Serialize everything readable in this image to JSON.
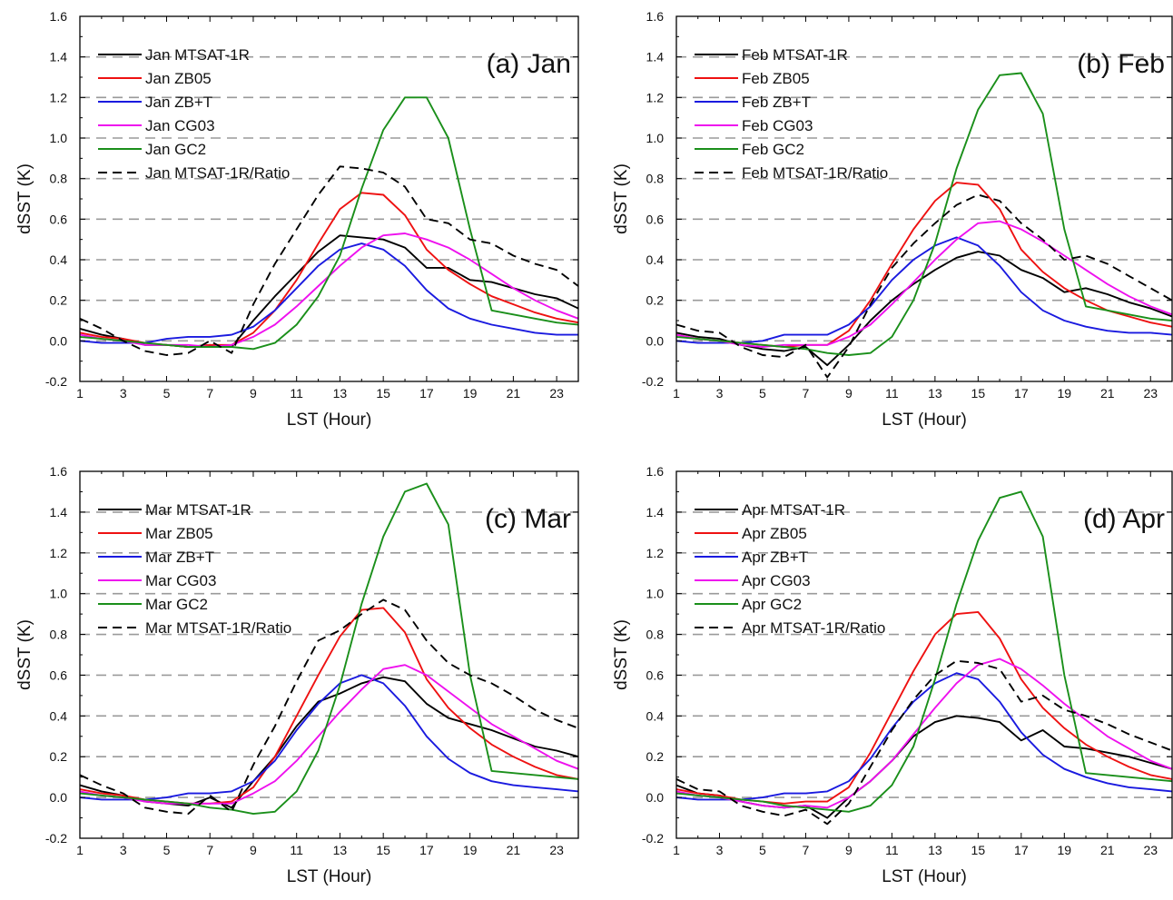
{
  "chart_data": [
    {
      "type": "line",
      "title": "(a) Jan",
      "xlabel": "LST (Hour)",
      "ylabel": "dSST (K)",
      "xlim": [
        1,
        24
      ],
      "ylim": [
        -0.2,
        1.6
      ],
      "xticks": [
        "1",
        "3",
        "5",
        "7",
        "9",
        "11",
        "13",
        "15",
        "17",
        "19",
        "21",
        "23"
      ],
      "yticks": [
        "-0.2",
        "0.0",
        "0.2",
        "0.4",
        "0.6",
        "0.8",
        "1.0",
        "1.2",
        "1.4",
        "1.6"
      ],
      "grid": "horizontal dashed",
      "legend_position": "top-left",
      "x": [
        1,
        2,
        3,
        4,
        5,
        6,
        7,
        8,
        9,
        10,
        11,
        12,
        13,
        14,
        15,
        16,
        17,
        18,
        19,
        20,
        21,
        22,
        23,
        24
      ],
      "series": [
        {
          "name": "Jan MTSAT-1R",
          "color": "#000000",
          "dash": "solid",
          "values": [
            0.06,
            0.03,
            0.01,
            -0.02,
            -0.02,
            -0.03,
            -0.02,
            -0.03,
            0.1,
            0.22,
            0.33,
            0.44,
            0.52,
            0.51,
            0.5,
            0.46,
            0.36,
            0.36,
            0.3,
            0.29,
            0.26,
            0.23,
            0.21,
            0.16
          ]
        },
        {
          "name": "Jan ZB05",
          "color": "#ee1111",
          "dash": "solid",
          "values": [
            0.04,
            0.02,
            0.01,
            -0.01,
            -0.02,
            -0.03,
            -0.02,
            -0.02,
            0.04,
            0.15,
            0.3,
            0.48,
            0.65,
            0.73,
            0.72,
            0.62,
            0.45,
            0.35,
            0.28,
            0.22,
            0.18,
            0.14,
            0.11,
            0.09
          ]
        },
        {
          "name": "Jan ZB+T",
          "color": "#1a1adf",
          "dash": "solid",
          "values": [
            0.0,
            -0.01,
            -0.01,
            -0.01,
            0.01,
            0.02,
            0.02,
            0.03,
            0.07,
            0.15,
            0.26,
            0.37,
            0.45,
            0.48,
            0.45,
            0.37,
            0.25,
            0.16,
            0.11,
            0.08,
            0.06,
            0.04,
            0.03,
            0.03
          ]
        },
        {
          "name": "Jan CG03",
          "color": "#ee11ee",
          "dash": "solid",
          "values": [
            0.03,
            0.01,
            0.0,
            -0.02,
            -0.02,
            -0.02,
            -0.03,
            -0.02,
            0.02,
            0.08,
            0.17,
            0.27,
            0.37,
            0.46,
            0.52,
            0.53,
            0.5,
            0.46,
            0.4,
            0.33,
            0.26,
            0.2,
            0.15,
            0.11
          ]
        },
        {
          "name": "Jan  GC2",
          "color": "#1a8f1a",
          "dash": "solid",
          "values": [
            0.02,
            0.01,
            0.0,
            -0.01,
            -0.02,
            -0.03,
            -0.03,
            -0.03,
            -0.04,
            -0.01,
            0.08,
            0.22,
            0.42,
            0.75,
            1.04,
            1.2,
            1.2,
            1.0,
            0.55,
            0.15,
            0.13,
            0.11,
            0.09,
            0.08
          ]
        },
        {
          "name": "Jan MTSAT-1R/Ratio",
          "color": "#000000",
          "dash": "dashed",
          "values": [
            0.11,
            0.06,
            0.0,
            -0.05,
            -0.07,
            -0.06,
            0.0,
            -0.06,
            0.18,
            0.38,
            0.55,
            0.72,
            0.86,
            0.85,
            0.83,
            0.76,
            0.6,
            0.58,
            0.5,
            0.48,
            0.42,
            0.38,
            0.35,
            0.27
          ]
        }
      ]
    },
    {
      "type": "line",
      "title": "(b) Feb",
      "xlabel": "LST (Hour)",
      "ylabel": "dSST (K)",
      "xlim": [
        1,
        24
      ],
      "ylim": [
        -0.2,
        1.6
      ],
      "xticks": [
        "1",
        "3",
        "5",
        "7",
        "9",
        "11",
        "13",
        "15",
        "17",
        "19",
        "21",
        "23"
      ],
      "yticks": [
        "-0.2",
        "0.0",
        "0.2",
        "0.4",
        "0.6",
        "0.8",
        "1.0",
        "1.2",
        "1.4",
        "1.6"
      ],
      "grid": "horizontal dashed",
      "legend_position": "top-left",
      "x": [
        1,
        2,
        3,
        4,
        5,
        6,
        7,
        8,
        9,
        10,
        11,
        12,
        13,
        14,
        15,
        16,
        17,
        18,
        19,
        20,
        21,
        22,
        23,
        24
      ],
      "series": [
        {
          "name": "Feb MTSAT-1R",
          "color": "#000000",
          "dash": "solid",
          "values": [
            0.04,
            0.02,
            0.01,
            -0.02,
            -0.04,
            -0.05,
            -0.03,
            -0.12,
            -0.02,
            0.1,
            0.2,
            0.28,
            0.35,
            0.41,
            0.44,
            0.42,
            0.35,
            0.31,
            0.24,
            0.26,
            0.23,
            0.19,
            0.16,
            0.12
          ]
        },
        {
          "name": "Feb ZB05",
          "color": "#ee1111",
          "dash": "solid",
          "values": [
            0.03,
            0.01,
            0.0,
            -0.01,
            -0.02,
            -0.03,
            -0.02,
            -0.02,
            0.05,
            0.2,
            0.38,
            0.55,
            0.69,
            0.78,
            0.77,
            0.65,
            0.45,
            0.34,
            0.26,
            0.2,
            0.15,
            0.12,
            0.09,
            0.07
          ]
        },
        {
          "name": "Feb ZB+T",
          "color": "#1a1adf",
          "dash": "solid",
          "values": [
            0.0,
            -0.01,
            -0.01,
            -0.01,
            0.0,
            0.03,
            0.03,
            0.03,
            0.08,
            0.17,
            0.3,
            0.4,
            0.47,
            0.51,
            0.47,
            0.37,
            0.24,
            0.15,
            0.1,
            0.07,
            0.05,
            0.04,
            0.04,
            0.03
          ]
        },
        {
          "name": "Feb CG03",
          "color": "#ee11ee",
          "dash": "solid",
          "values": [
            0.03,
            0.01,
            0.0,
            -0.02,
            -0.03,
            -0.02,
            -0.02,
            -0.02,
            0.02,
            0.08,
            0.18,
            0.29,
            0.4,
            0.5,
            0.58,
            0.59,
            0.55,
            0.49,
            0.42,
            0.35,
            0.28,
            0.22,
            0.17,
            0.13
          ]
        },
        {
          "name": "Feb  GC2",
          "color": "#1a8f1a",
          "dash": "solid",
          "values": [
            0.02,
            0.01,
            0.0,
            -0.01,
            -0.02,
            -0.03,
            -0.04,
            -0.06,
            -0.07,
            -0.06,
            0.02,
            0.2,
            0.48,
            0.85,
            1.14,
            1.31,
            1.32,
            1.12,
            0.55,
            0.17,
            0.15,
            0.13,
            0.11,
            0.1
          ]
        },
        {
          "name": "Feb MTSAT-1R/Ratio",
          "color": "#000000",
          "dash": "dashed",
          "values": [
            0.08,
            0.05,
            0.04,
            -0.03,
            -0.07,
            -0.08,
            -0.02,
            -0.18,
            -0.03,
            0.18,
            0.36,
            0.48,
            0.58,
            0.67,
            0.72,
            0.69,
            0.58,
            0.5,
            0.4,
            0.42,
            0.38,
            0.32,
            0.26,
            0.2
          ]
        }
      ]
    },
    {
      "type": "line",
      "title": "(c) Mar",
      "xlabel": "LST (Hour)",
      "ylabel": "dSST (K)",
      "xlim": [
        1,
        24
      ],
      "ylim": [
        -0.2,
        1.6
      ],
      "xticks": [
        "1",
        "3",
        "5",
        "7",
        "9",
        "11",
        "13",
        "15",
        "17",
        "19",
        "21",
        "23"
      ],
      "yticks": [
        "-0.2",
        "0.0",
        "0.2",
        "0.4",
        "0.6",
        "0.8",
        "1.0",
        "1.2",
        "1.4",
        "1.6"
      ],
      "grid": "horizontal dashed",
      "legend_position": "top-left",
      "x": [
        1,
        2,
        3,
        4,
        5,
        6,
        7,
        8,
        9,
        10,
        11,
        12,
        13,
        14,
        15,
        16,
        17,
        18,
        19,
        20,
        21,
        22,
        23,
        24
      ],
      "series": [
        {
          "name": "Mar MTSAT-1R",
          "color": "#000000",
          "dash": "solid",
          "values": [
            0.06,
            0.03,
            0.01,
            -0.02,
            -0.03,
            -0.04,
            0.0,
            -0.05,
            0.08,
            0.2,
            0.35,
            0.47,
            0.51,
            0.56,
            0.59,
            0.57,
            0.46,
            0.39,
            0.36,
            0.33,
            0.29,
            0.25,
            0.23,
            0.2
          ]
        },
        {
          "name": "Mar ZB05",
          "color": "#ee1111",
          "dash": "solid",
          "values": [
            0.04,
            0.02,
            0.01,
            -0.01,
            -0.02,
            -0.03,
            -0.03,
            -0.02,
            0.05,
            0.2,
            0.4,
            0.6,
            0.79,
            0.92,
            0.93,
            0.81,
            0.58,
            0.44,
            0.34,
            0.26,
            0.2,
            0.15,
            0.11,
            0.09
          ]
        },
        {
          "name": "Mar ZB+T",
          "color": "#1a1adf",
          "dash": "solid",
          "values": [
            0.0,
            -0.01,
            -0.01,
            -0.01,
            0.0,
            0.02,
            0.02,
            0.03,
            0.08,
            0.18,
            0.33,
            0.46,
            0.56,
            0.6,
            0.56,
            0.45,
            0.3,
            0.19,
            0.12,
            0.08,
            0.06,
            0.05,
            0.04,
            0.03
          ]
        },
        {
          "name": "Mar CG03",
          "color": "#ee11ee",
          "dash": "solid",
          "values": [
            0.03,
            0.01,
            0.0,
            -0.02,
            -0.03,
            -0.03,
            -0.03,
            -0.03,
            0.02,
            0.08,
            0.18,
            0.3,
            0.42,
            0.53,
            0.63,
            0.65,
            0.6,
            0.52,
            0.44,
            0.36,
            0.3,
            0.24,
            0.18,
            0.14
          ]
        },
        {
          "name": "Mar  GC2",
          "color": "#1a8f1a",
          "dash": "solid",
          "values": [
            0.02,
            0.01,
            0.0,
            -0.01,
            -0.02,
            -0.03,
            -0.05,
            -0.06,
            -0.08,
            -0.07,
            0.03,
            0.23,
            0.55,
            0.95,
            1.28,
            1.5,
            1.54,
            1.34,
            0.6,
            0.13,
            0.12,
            0.11,
            0.1,
            0.09
          ]
        },
        {
          "name": "Mar MTSAT-1R/Ratio",
          "color": "#000000",
          "dash": "dashed",
          "values": [
            0.11,
            0.06,
            0.02,
            -0.05,
            -0.07,
            -0.08,
            0.01,
            -0.07,
            0.16,
            0.35,
            0.57,
            0.77,
            0.82,
            0.9,
            0.97,
            0.92,
            0.77,
            0.66,
            0.6,
            0.56,
            0.5,
            0.43,
            0.38,
            0.34
          ]
        }
      ]
    },
    {
      "type": "line",
      "title": "(d) Apr",
      "xlabel": "LST (Hour)",
      "ylabel": "dSST (K)",
      "xlim": [
        1,
        24
      ],
      "ylim": [
        -0.2,
        1.6
      ],
      "xticks": [
        "1",
        "3",
        "5",
        "7",
        "9",
        "11",
        "13",
        "15",
        "17",
        "19",
        "21",
        "23"
      ],
      "yticks": [
        "-0.2",
        "0.0",
        "0.2",
        "0.4",
        "0.6",
        "0.8",
        "1.0",
        "1.2",
        "1.4",
        "1.6"
      ],
      "grid": "horizontal dashed",
      "legend_position": "top-left",
      "x": [
        1,
        2,
        3,
        4,
        5,
        6,
        7,
        8,
        9,
        10,
        11,
        12,
        13,
        14,
        15,
        16,
        17,
        18,
        19,
        20,
        21,
        22,
        23,
        24
      ],
      "series": [
        {
          "name": "Apr MTSAT-1R",
          "color": "#000000",
          "dash": "solid",
          "values": [
            0.06,
            0.02,
            0.01,
            -0.02,
            -0.04,
            -0.05,
            -0.04,
            -0.1,
            0.0,
            0.08,
            0.18,
            0.3,
            0.37,
            0.4,
            0.39,
            0.37,
            0.28,
            0.33,
            0.25,
            0.24,
            0.22,
            0.2,
            0.17,
            0.14
          ]
        },
        {
          "name": "Apr ZB05",
          "color": "#ee1111",
          "dash": "solid",
          "values": [
            0.04,
            0.02,
            0.01,
            -0.01,
            -0.02,
            -0.03,
            -0.02,
            -0.02,
            0.05,
            0.22,
            0.42,
            0.62,
            0.8,
            0.9,
            0.91,
            0.78,
            0.58,
            0.44,
            0.34,
            0.26,
            0.2,
            0.15,
            0.11,
            0.09
          ]
        },
        {
          "name": "Apr ZB+T",
          "color": "#1a1adf",
          "dash": "solid",
          "values": [
            0.0,
            -0.01,
            -0.01,
            -0.01,
            0.0,
            0.02,
            0.02,
            0.03,
            0.08,
            0.19,
            0.34,
            0.47,
            0.56,
            0.61,
            0.58,
            0.47,
            0.32,
            0.21,
            0.14,
            0.1,
            0.07,
            0.05,
            0.04,
            0.03
          ]
        },
        {
          "name": "Apr CG03",
          "color": "#ee11ee",
          "dash": "solid",
          "values": [
            0.03,
            0.01,
            0.0,
            -0.02,
            -0.04,
            -0.05,
            -0.04,
            -0.05,
            0.0,
            0.08,
            0.18,
            0.31,
            0.44,
            0.56,
            0.65,
            0.68,
            0.63,
            0.55,
            0.46,
            0.38,
            0.3,
            0.24,
            0.18,
            0.14
          ]
        },
        {
          "name": "Apr  GC2",
          "color": "#1a8f1a",
          "dash": "solid",
          "values": [
            0.02,
            0.01,
            0.0,
            -0.01,
            -0.02,
            -0.04,
            -0.05,
            -0.06,
            -0.07,
            -0.04,
            0.06,
            0.25,
            0.58,
            0.95,
            1.26,
            1.47,
            1.5,
            1.28,
            0.6,
            0.12,
            0.11,
            0.1,
            0.09,
            0.08
          ]
        },
        {
          "name": "Apr MTSAT-1R/Ratio",
          "color": "#000000",
          "dash": "dashed",
          "values": [
            0.09,
            0.04,
            0.03,
            -0.04,
            -0.07,
            -0.09,
            -0.06,
            -0.13,
            -0.03,
            0.15,
            0.33,
            0.48,
            0.6,
            0.67,
            0.66,
            0.63,
            0.47,
            0.5,
            0.43,
            0.4,
            0.36,
            0.31,
            0.27,
            0.23
          ]
        }
      ]
    }
  ]
}
